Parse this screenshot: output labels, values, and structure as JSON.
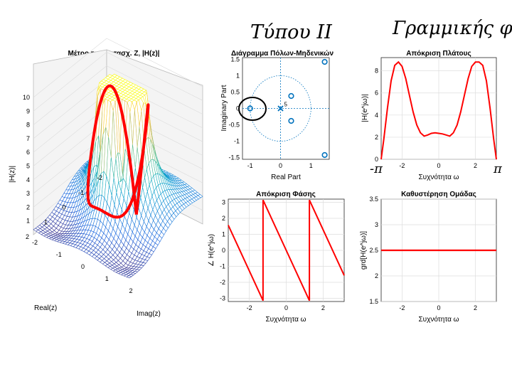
{
  "handwritten": {
    "type_label": "Τύπου ΙΙ",
    "phase_note": "Γραμμικής φάσης",
    "left_pi": "-π",
    "right_pi": "π"
  },
  "colors": {
    "plot_red": "#ff0000",
    "marker_blue": "#0072bd",
    "ink": "#000000",
    "grid": "#dddddd"
  },
  "chart_data": [
    {
      "type": "surface",
      "title": "Μέτρο του Μετασχ. Ζ, |H(z)|",
      "xlabel": "Imag(z)",
      "ylabel": "Real(z)",
      "zlabel": "|H(z)|",
      "xticks": [
        "-2",
        "-1",
        "0",
        "1",
        "2"
      ],
      "yticks": [
        "-2",
        "-1",
        "0",
        "1",
        "2"
      ],
      "zticks": [
        "1",
        "2",
        "3",
        "4",
        "5",
        "6",
        "7",
        "8",
        "9",
        "10"
      ],
      "xlim": [
        -2,
        2
      ],
      "ylim": [
        -2,
        2
      ],
      "zlim": [
        0,
        10
      ],
      "colormap": "parula",
      "unit_circle_color": "#ff0000"
    },
    {
      "type": "scatter",
      "title": "Διάγραμμα Πόλων-Μηδενικών",
      "xlabel": "Real Part",
      "ylabel": "Imaginary Part",
      "xticks": [
        "-1",
        "0",
        "1"
      ],
      "yticks": [
        "1.5",
        "1",
        "0.5",
        "0",
        "-0.5",
        "-1",
        "-1.5"
      ],
      "xlim": [
        -1.25,
        1.6
      ],
      "ylim": [
        -1.55,
        1.55
      ],
      "zeros": [
        {
          "re": -1.0,
          "im": 0.0
        },
        {
          "re": 0.35,
          "im": 0.38
        },
        {
          "re": 0.35,
          "im": -0.38
        },
        {
          "re": 1.45,
          "im": 1.42
        },
        {
          "re": 1.45,
          "im": -1.42
        }
      ],
      "poles": [
        {
          "re": 0.0,
          "im": 0.0,
          "multiplicity": "5"
        }
      ],
      "unit_circle": true
    },
    {
      "type": "line",
      "title": "Απόκριση Πλάτους",
      "xlabel": "Συχνότητα ω",
      "ylabel": "|H(e^jω)|",
      "xticks": [
        "-2",
        "0",
        "2"
      ],
      "yticks": [
        "0",
        "2",
        "4",
        "6",
        "8"
      ],
      "xlim": [
        -3.1416,
        3.1416
      ],
      "ylim": [
        0,
        9.2
      ],
      "grid": true,
      "x": [
        -3.14,
        -3.0,
        -2.8,
        -2.6,
        -2.4,
        -2.2,
        -2.0,
        -1.8,
        -1.6,
        -1.4,
        -1.2,
        -1.0,
        -0.8,
        -0.6,
        -0.4,
        -0.2,
        0.0,
        0.2,
        0.4,
        0.6,
        0.8,
        1.0,
        1.2,
        1.4,
        1.6,
        1.8,
        2.0,
        2.2,
        2.4,
        2.6,
        2.8,
        3.0,
        3.14
      ],
      "y": [
        0.0,
        1.8,
        4.6,
        7.1,
        8.5,
        8.8,
        8.4,
        7.3,
        5.8,
        4.3,
        3.1,
        2.4,
        2.1,
        2.2,
        2.35,
        2.4,
        2.35,
        2.3,
        2.2,
        2.1,
        2.4,
        3.1,
        4.3,
        5.8,
        7.3,
        8.4,
        8.8,
        8.8,
        8.5,
        7.1,
        4.6,
        1.8,
        0.0
      ]
    },
    {
      "type": "line",
      "title": "Απόκριση Φάσης",
      "xlabel": "Συχνότητα ω",
      "ylabel": "∠ H(e^jω)",
      "xticks": [
        "-2",
        "0",
        "2"
      ],
      "yticks": [
        "3",
        "2",
        "1",
        "0",
        "-1",
        "-2",
        "-3"
      ],
      "xlim": [
        -3.1416,
        3.1416
      ],
      "ylim": [
        -3.2,
        3.2
      ],
      "grid": true,
      "x": [
        -3.1416,
        -1.2566,
        -1.2566,
        1.2566,
        1.2566,
        3.1416
      ],
      "y": [
        1.5708,
        -3.1416,
        3.1416,
        -3.1416,
        3.1416,
        -1.5708
      ]
    },
    {
      "type": "line",
      "title": "Καθυστέρηση Ομάδας",
      "xlabel": "Συχνότητα ω",
      "ylabel": "grd[H(e^jω)]",
      "xticks": [
        "-2",
        "0",
        "2"
      ],
      "yticks": [
        "3.5",
        "3",
        "2.5",
        "2",
        "1.5"
      ],
      "xlim": [
        -3.1416,
        3.1416
      ],
      "ylim": [
        1.5,
        3.5
      ],
      "grid": true,
      "x": [
        -3.1416,
        3.1416
      ],
      "y": [
        2.5,
        2.5
      ]
    }
  ]
}
